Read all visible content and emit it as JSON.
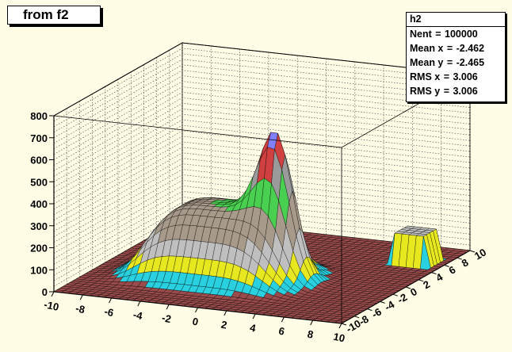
{
  "title_box": "from f2",
  "stats": {
    "name": "h2",
    "rows": [
      {
        "label": "Nent",
        "value": "100000"
      },
      {
        "label": "Mean x",
        "value": "-2.462"
      },
      {
        "label": "Mean y",
        "value": "-2.465"
      },
      {
        "label": "RMS x ",
        "value": "3.006"
      },
      {
        "label": "RMS y ",
        "value": "3.006"
      }
    ]
  },
  "chart_data": {
    "type": "lego-surface-3d",
    "histogram": "h2",
    "x_range": [
      -10,
      10
    ],
    "y_range": [
      -10,
      10
    ],
    "z_range": [
      0,
      800
    ],
    "x_ticks": [
      -10,
      -8,
      -6,
      -4,
      -2,
      0,
      2,
      4,
      6,
      8,
      10
    ],
    "y_ticks": [
      -10,
      -8,
      -6,
      -4,
      -2,
      0,
      2,
      4,
      6,
      8,
      10
    ],
    "z_ticks": [
      0,
      100,
      200,
      300,
      400,
      500,
      600,
      700,
      800
    ],
    "grid": true,
    "features": {
      "main_peak": {
        "x": 2,
        "y": -2,
        "z": 780
      },
      "plateau": {
        "x_range": [
          -8,
          4
        ],
        "y_range": [
          -6,
          2
        ],
        "z": 330
      },
      "small_block": {
        "x": 8,
        "y": 6,
        "z": 140
      }
    },
    "colors": [
      "#9a4b4b",
      "#29d0e0",
      "#e8e820",
      "#bfbfbf",
      "#4ad050",
      "#9a9a9a",
      "#d04040",
      "#8080ff"
    ]
  }
}
